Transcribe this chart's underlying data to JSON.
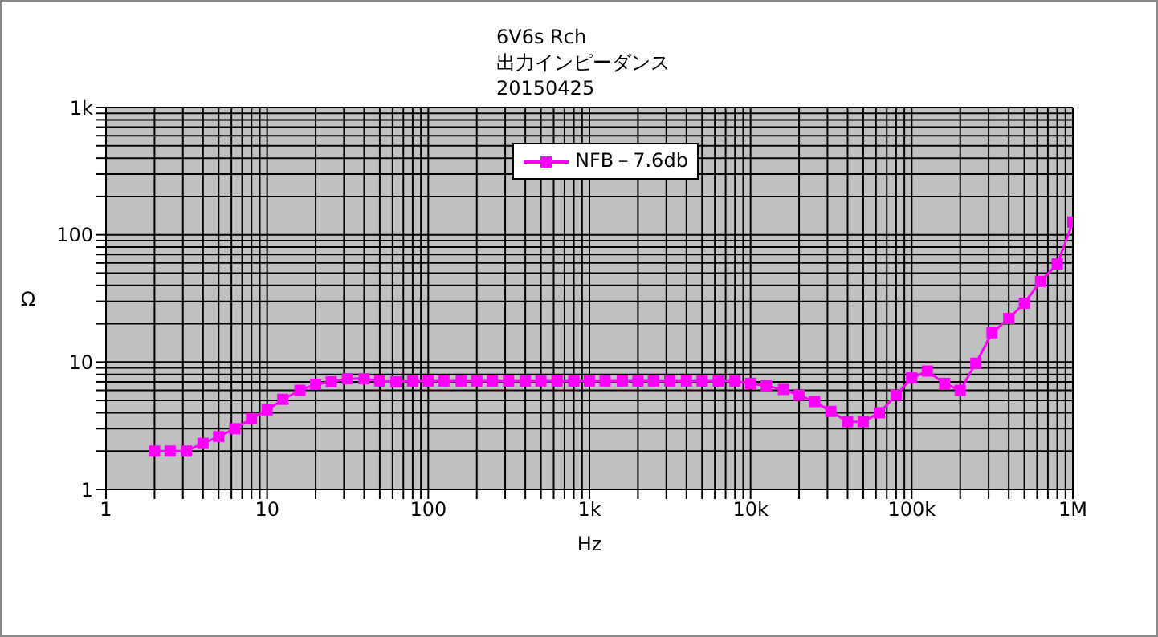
{
  "chart_data": {
    "type": "line",
    "title": "6V6s Rch",
    "subtitle": "出力インピーダンス\n20150425",
    "xlabel": "Hz",
    "ylabel": "Ω",
    "log": "xy",
    "grid": true,
    "legend": "top",
    "marker": "square",
    "line_style": "solid",
    "x": [
      2,
      2.5,
      3.15,
      4,
      5,
      6.3,
      8,
      10,
      12.5,
      16,
      20,
      25,
      31.5,
      40,
      50,
      63,
      80,
      100,
      125,
      160,
      200,
      250,
      315,
      400,
      500,
      630,
      800,
      1000,
      1250,
      1600,
      2000,
      2500,
      3150,
      4000,
      5000,
      6300,
      8000,
      10000,
      12500,
      16000,
      20000,
      25000,
      31500,
      40000,
      50000,
      63000,
      80000,
      100000,
      125000,
      160000,
      200000,
      250000,
      315000,
      400000,
      500000,
      630000,
      800000,
      1000000
    ],
    "series": [
      {
        "name": "NFB－7.6db",
        "color": "#ff00ff",
        "values": [
          2,
          2,
          2,
          2.3,
          2.6,
          3,
          3.6,
          4.2,
          5.1,
          6,
          6.7,
          7,
          7.4,
          7.4,
          7.1,
          7,
          7.1,
          7.1,
          7.1,
          7.1,
          7.1,
          7.1,
          7.1,
          7.1,
          7.1,
          7.1,
          7.1,
          7.1,
          7.1,
          7.1,
          7.1,
          7.1,
          7.1,
          7.1,
          7.1,
          7.1,
          7.1,
          6.8,
          6.5,
          6.1,
          5.5,
          4.9,
          4.1,
          3.4,
          3.4,
          4,
          5.5,
          7.5,
          8.5,
          6.8,
          6,
          9.8,
          17,
          22,
          29,
          43,
          59,
          126
        ]
      }
    ],
    "xlim": [
      1,
      1000000
    ],
    "ylim": [
      1,
      1000
    ],
    "xticks": [
      1,
      {
        "value": 2,
        "label": null
      },
      {
        "value": 3,
        "label": null
      },
      {
        "value": 4,
        "label": null
      },
      {
        "value": 5,
        "label": null
      },
      {
        "value": 6,
        "label": null
      },
      {
        "value": 7,
        "label": null
      },
      {
        "value": 8,
        "label": null
      },
      {
        "value": 9,
        "label": null
      },
      10,
      {
        "value": 20,
        "label": null
      },
      {
        "value": 30,
        "label": null
      },
      {
        "value": 40,
        "label": null
      },
      {
        "value": 50,
        "label": null
      },
      {
        "value": 60,
        "label": null
      },
      {
        "value": 70,
        "label": null
      },
      {
        "value": 80,
        "label": null
      },
      {
        "value": 90,
        "label": null
      },
      100,
      {
        "value": 200,
        "label": null
      },
      {
        "value": 300,
        "label": null
      },
      {
        "value": 400,
        "label": null
      },
      {
        "value": 500,
        "label": null
      },
      {
        "value": 600,
        "label": null
      },
      {
        "value": 700,
        "label": null
      },
      {
        "value": 800,
        "label": null
      },
      {
        "value": 900,
        "label": null
      },
      {
        "value": 1000,
        "label": "1k"
      },
      {
        "value": 2000,
        "label": null
      },
      {
        "value": 3000,
        "label": null
      },
      {
        "value": 4000,
        "label": null
      },
      {
        "value": 5000,
        "label": null
      },
      {
        "value": 6000,
        "label": null
      },
      {
        "value": 7000,
        "label": null
      },
      {
        "value": 8000,
        "label": null
      },
      {
        "value": 9000,
        "label": null
      },
      {
        "value": 10000,
        "label": "10k"
      },
      {
        "value": 20000,
        "label": null
      },
      {
        "value": 30000,
        "label": null
      },
      {
        "value": 40000,
        "label": null
      },
      {
        "value": 50000,
        "label": null
      },
      {
        "value": 60000,
        "label": null
      },
      {
        "value": 70000,
        "label": null
      },
      {
        "value": 80000,
        "label": null
      },
      {
        "value": 90000,
        "label": null
      },
      {
        "value": 100000,
        "label": "100k"
      },
      {
        "value": 200000,
        "label": null
      },
      {
        "value": 300000,
        "label": null
      },
      {
        "value": 400000,
        "label": null
      },
      {
        "value": 500000,
        "label": null
      },
      {
        "value": 600000,
        "label": null
      },
      {
        "value": 700000,
        "label": null
      },
      {
        "value": 800000,
        "label": null
      },
      {
        "value": 900000,
        "label": null
      },
      {
        "value": 1000000,
        "label": "1M"
      }
    ],
    "yticks": [
      1,
      {
        "value": 2,
        "label": null
      },
      {
        "value": 3,
        "label": null
      },
      {
        "value": 4,
        "label": null
      },
      {
        "value": 5,
        "label": null
      },
      {
        "value": 6,
        "label": null
      },
      {
        "value": 7,
        "label": null
      },
      {
        "value": 8,
        "label": null
      },
      {
        "value": 9,
        "label": null
      },
      10,
      {
        "value": 20,
        "label": null
      },
      {
        "value": 30,
        "label": null
      },
      {
        "value": 40,
        "label": null
      },
      {
        "value": 50,
        "label": null
      },
      {
        "value": 60,
        "label": null
      },
      {
        "value": 70,
        "label": null
      },
      {
        "value": 80,
        "label": null
      },
      {
        "value": 90,
        "label": null
      },
      100,
      {
        "value": 200,
        "label": null
      },
      {
        "value": 300,
        "label": null
      },
      {
        "value": 400,
        "label": null
      },
      {
        "value": 500,
        "label": null
      },
      {
        "value": 600,
        "label": null
      },
      {
        "value": 700,
        "label": null
      },
      {
        "value": 800,
        "label": null
      },
      {
        "value": 900,
        "label": null
      },
      {
        "value": 1000,
        "label": "1k"
      }
    ]
  }
}
